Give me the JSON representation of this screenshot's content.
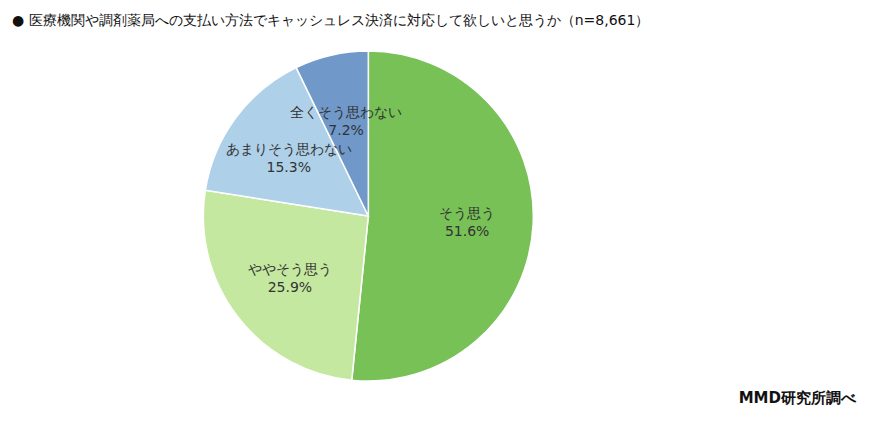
{
  "chart_data": {
    "type": "pie",
    "title": "●  医療機関や調剤薬局への支払い方法でキャッシュレス決済に対応して欲しいと思うか（n=8,661）",
    "categories": [
      "そう思う",
      "ややそう思う",
      "あまりそう思わない",
      "全くそう思わない"
    ],
    "values": [
      51.6,
      25.9,
      15.3,
      7.2
    ],
    "value_labels": [
      "51.6%",
      "25.9%",
      "15.3%",
      "7.2%"
    ],
    "colors": [
      "#77c157",
      "#c5e8a0",
      "#aed0e8",
      "#7098c8"
    ],
    "data_labels": true,
    "annotations": [
      "MMD研究所調べ"
    ]
  }
}
